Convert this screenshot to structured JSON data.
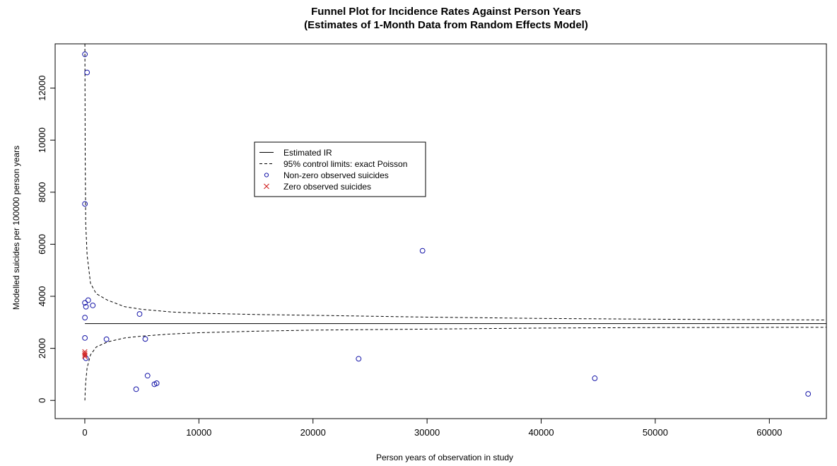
{
  "chart_data": {
    "type": "scatter",
    "title": "Funnel Plot for Incidence Rates Against Person Years",
    "subtitle": "(Estimates of 1-Month Data from Random Effects Model)",
    "xlabel": "Person years of observation in study",
    "ylabel": "Modelled suicides per 100000 person years",
    "xlim": [
      -2600,
      65000
    ],
    "ylim": [
      -700,
      13700
    ],
    "x_ticks": [
      0,
      10000,
      20000,
      30000,
      40000,
      50000,
      60000
    ],
    "y_ticks": [
      0,
      2000,
      4000,
      6000,
      8000,
      10000,
      12000
    ],
    "grid": false,
    "legend_position": "center-left",
    "estimated_ir": 2950,
    "control_limits": {
      "x": [
        8,
        30,
        80,
        200,
        500,
        1000,
        2000,
        3500,
        5000,
        7500,
        10000,
        15000,
        20000,
        30000,
        40000,
        50000,
        65000
      ],
      "upper": [
        13700,
        9700,
        6800,
        5600,
        4500,
        4100,
        3850,
        3600,
        3500,
        3400,
        3350,
        3300,
        3270,
        3200,
        3150,
        3120,
        3090
      ],
      "lower": [
        0,
        300,
        700,
        1250,
        1750,
        2050,
        2250,
        2400,
        2470,
        2550,
        2600,
        2660,
        2700,
        2740,
        2780,
        2800,
        2810
      ]
    },
    "series": [
      {
        "name": "Non-zero observed suicides",
        "color": "#1515a8",
        "marker": "circle",
        "x": [
          10,
          200,
          10,
          10,
          300,
          100,
          700,
          10,
          10,
          1900,
          4800,
          5300,
          100,
          5500,
          4500,
          6100,
          6300,
          24000,
          29600,
          44700,
          63400
        ],
        "y": [
          13300,
          12600,
          7550,
          3750,
          3850,
          3600,
          3650,
          3180,
          2400,
          2350,
          3320,
          2360,
          1620,
          950,
          430,
          620,
          660,
          1600,
          5750,
          850,
          250
        ]
      },
      {
        "name": "Zero observed suicides",
        "color": "#d02020",
        "marker": "cross",
        "x": [
          0,
          0,
          0,
          0
        ],
        "y": [
          1870,
          1800,
          1740,
          1690
        ]
      }
    ],
    "legend": [
      {
        "label": "Estimated IR",
        "symbol": "solid-line"
      },
      {
        "label": "95% control limits: exact Poisson",
        "symbol": "dashed-line"
      },
      {
        "label": "Non-zero observed suicides",
        "symbol": "circle",
        "color": "#1515a8"
      },
      {
        "label": "Zero observed suicides",
        "symbol": "cross",
        "color": "#d02020"
      }
    ]
  }
}
